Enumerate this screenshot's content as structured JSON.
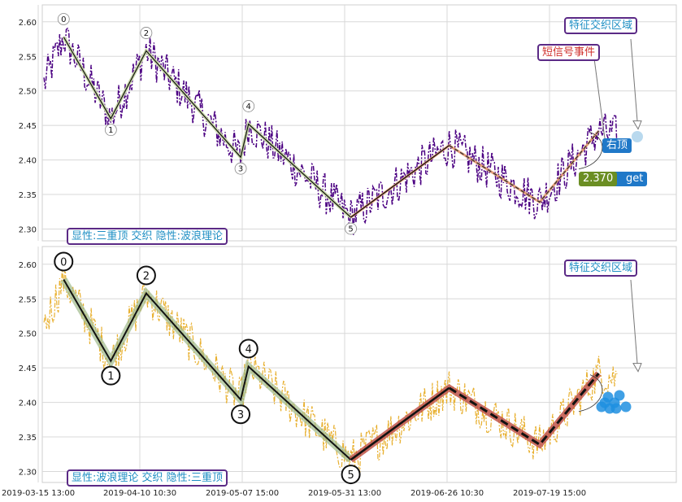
{
  "chart_data": [
    {
      "type": "line",
      "panel": "top",
      "ylim": [
        2.29,
        2.62
      ],
      "yticks": [
        "2.30",
        "2.35",
        "2.40",
        "2.45",
        "2.50",
        "2.55",
        "2.60"
      ],
      "grid": true,
      "x_tick_labels": [
        "2019-03-15 13:00",
        "2019-04-10 10:30",
        "2019-05-07 15:00",
        "2019-05-31 13:00",
        "2019-06-26 10:30",
        "2019-07-19 15:00"
      ],
      "price_series_color": "#4b0082",
      "waves": [
        {
          "label": "0",
          "x": "2019-03-22",
          "y": 2.578
        },
        {
          "label": "1",
          "x": "2019-04-03",
          "y": 2.46
        },
        {
          "label": "2",
          "x": "2019-04-12",
          "y": 2.558
        },
        {
          "label": "3",
          "x": "2019-05-06",
          "y": 2.404
        },
        {
          "label": "4",
          "x": "2019-05-08",
          "y": 2.452
        },
        {
          "label": "5",
          "x": "2019-06-03",
          "y": 2.317
        }
      ],
      "triple_top_points": [
        {
          "x": "2019-06-03",
          "y": 2.317
        },
        {
          "x": "2019-06-28",
          "y": 2.421
        },
        {
          "x": "2019-07-21",
          "y": 2.339
        },
        {
          "x": "2019-08-05",
          "y": 2.442
        }
      ],
      "annotations": {
        "feature_zone": "特征交织区域",
        "short_signal": "短信号事件",
        "right_top": "右顶",
        "target_value": "2.370",
        "target_suffix": "get",
        "legend_text": "显性:三重顶 交织 隐性:波浪理论"
      }
    },
    {
      "type": "line",
      "panel": "bottom",
      "ylim": [
        2.29,
        2.62
      ],
      "yticks": [
        "2.30",
        "2.35",
        "2.40",
        "2.45",
        "2.50",
        "2.55",
        "2.60"
      ],
      "grid": true,
      "x_tick_labels": [
        "2019-03-15 13:00",
        "2019-04-10 10:30",
        "2019-05-07 15:00",
        "2019-05-31 13:00",
        "2019-06-26 10:30",
        "2019-07-19 15:00"
      ],
      "price_series_color": "#e8b030",
      "waves": [
        {
          "label": "0",
          "x": "2019-03-22",
          "y": 2.578
        },
        {
          "label": "1",
          "x": "2019-04-03",
          "y": 2.46
        },
        {
          "label": "2",
          "x": "2019-04-12",
          "y": 2.558
        },
        {
          "label": "3",
          "x": "2019-05-06",
          "y": 2.404
        },
        {
          "label": "4",
          "x": "2019-05-08",
          "y": 2.452
        },
        {
          "label": "5",
          "x": "2019-06-03",
          "y": 2.317
        }
      ],
      "triple_top_points": [
        {
          "x": "2019-06-03",
          "y": 2.317
        },
        {
          "x": "2019-06-28",
          "y": 2.421
        },
        {
          "x": "2019-07-21",
          "y": 2.339
        },
        {
          "x": "2019-08-05",
          "y": 2.442
        }
      ],
      "annotations": {
        "feature_zone": "特征交织区域",
        "legend_text": "显性:波浪理论 交织 隐性:三重顶"
      }
    }
  ]
}
